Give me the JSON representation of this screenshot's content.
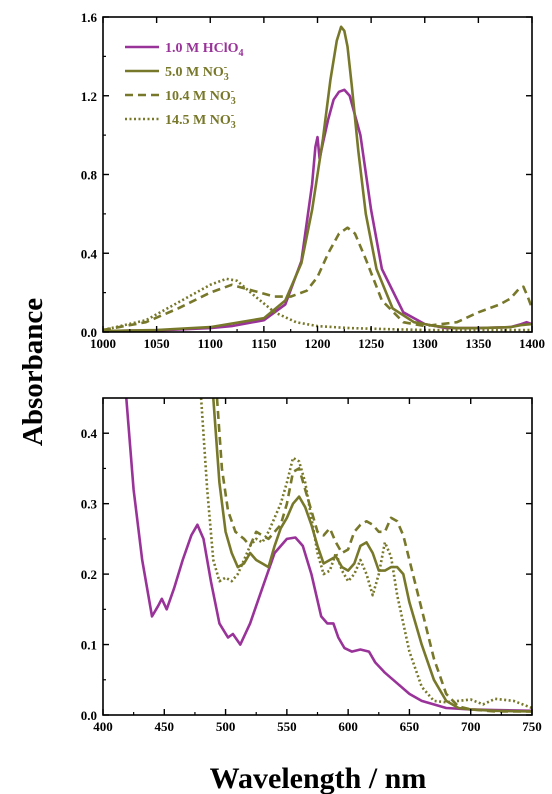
{
  "figure": {
    "ylabel": "Absorbance",
    "xlabel": "Wavelength / nm"
  },
  "colors": {
    "purple": "#993399",
    "olive": "#77782a"
  },
  "chart_data": [
    {
      "type": "line",
      "panel": "top",
      "xlim": [
        1000,
        1400
      ],
      "ylim": [
        0,
        1.6
      ],
      "xticks": [
        "1000",
        "1050",
        "1100",
        "1150",
        "1200",
        "1250",
        "1300",
        "1350",
        "1400"
      ],
      "yticks": [
        "0.0",
        "0.4",
        "0.8",
        "1.2",
        "1.6"
      ],
      "legend_position": "top-left",
      "series": [
        {
          "name": "1.0 M HClO",
          "sub": "4",
          "sup": "",
          "color": "#993399",
          "dash": "solid",
          "x": [
            1000,
            1050,
            1100,
            1120,
            1150,
            1170,
            1185,
            1195,
            1198,
            1200,
            1202,
            1205,
            1210,
            1215,
            1220,
            1225,
            1230,
            1240,
            1250,
            1260,
            1280,
            1300,
            1320,
            1350,
            1380,
            1390,
            1395,
            1400
          ],
          "y": [
            0.005,
            0.008,
            0.02,
            0.03,
            0.06,
            0.14,
            0.36,
            0.75,
            0.94,
            0.99,
            0.88,
            0.96,
            1.08,
            1.18,
            1.22,
            1.23,
            1.2,
            1.0,
            0.62,
            0.32,
            0.1,
            0.04,
            0.02,
            0.02,
            0.025,
            0.04,
            0.05,
            0.04
          ]
        },
        {
          "name": "5.0 M NO",
          "sub": "3",
          "sup": "-",
          "color": "#77782a",
          "dash": "solid",
          "x": [
            1000,
            1050,
            1100,
            1150,
            1170,
            1185,
            1195,
            1205,
            1212,
            1218,
            1222,
            1225,
            1228,
            1232,
            1238,
            1245,
            1255,
            1270,
            1290,
            1310,
            1330,
            1350,
            1380,
            1390,
            1400
          ],
          "y": [
            0.005,
            0.01,
            0.025,
            0.07,
            0.16,
            0.35,
            0.62,
            0.98,
            1.28,
            1.48,
            1.55,
            1.53,
            1.45,
            1.25,
            0.92,
            0.6,
            0.32,
            0.12,
            0.05,
            0.03,
            0.02,
            0.02,
            0.025,
            0.035,
            0.04
          ]
        },
        {
          "name": "10.4 M NO",
          "sub": "3",
          "sup": "-",
          "color": "#77782a",
          "dash": "dashed",
          "x": [
            1000,
            1040,
            1070,
            1100,
            1120,
            1140,
            1160,
            1175,
            1190,
            1200,
            1210,
            1220,
            1228,
            1235,
            1245,
            1260,
            1280,
            1300,
            1330,
            1350,
            1370,
            1380,
            1388,
            1392,
            1396,
            1400
          ],
          "y": [
            0.01,
            0.05,
            0.12,
            0.2,
            0.24,
            0.21,
            0.18,
            0.18,
            0.21,
            0.28,
            0.4,
            0.5,
            0.53,
            0.5,
            0.37,
            0.16,
            0.05,
            0.03,
            0.05,
            0.1,
            0.14,
            0.17,
            0.22,
            0.23,
            0.18,
            0.12
          ]
        },
        {
          "name": "14.5 M NO",
          "sub": "3",
          "sup": "-",
          "color": "#77782a",
          "dash": "dotted",
          "x": [
            1000,
            1040,
            1070,
            1100,
            1115,
            1125,
            1140,
            1160,
            1180,
            1200,
            1230,
            1260,
            1300,
            1340,
            1370,
            1400
          ],
          "y": [
            0.01,
            0.06,
            0.15,
            0.24,
            0.27,
            0.26,
            0.19,
            0.1,
            0.05,
            0.03,
            0.02,
            0.015,
            0.01,
            0.01,
            0.01,
            0.01
          ]
        }
      ]
    },
    {
      "type": "line",
      "panel": "bottom",
      "xlim": [
        400,
        750
      ],
      "ylim": [
        0,
        0.45
      ],
      "xticks": [
        "400",
        "450",
        "500",
        "550",
        "600",
        "650",
        "700",
        "750"
      ],
      "yticks": [
        "0.0",
        "0.1",
        "0.2",
        "0.3",
        "0.4"
      ],
      "series": [
        {
          "name": "1.0 M HClO4",
          "color": "#993399",
          "dash": "solid",
          "x": [
            419,
            425,
            432,
            440,
            445,
            448,
            452,
            458,
            465,
            472,
            477,
            482,
            488,
            495,
            502,
            506,
            512,
            520,
            530,
            540,
            550,
            557,
            563,
            570,
            578,
            583,
            588,
            592,
            597,
            603,
            610,
            617,
            622,
            630,
            640,
            650,
            660,
            680,
            700,
            720,
            750
          ],
          "y": [
            0.45,
            0.32,
            0.22,
            0.14,
            0.155,
            0.165,
            0.15,
            0.18,
            0.22,
            0.255,
            0.27,
            0.25,
            0.19,
            0.13,
            0.11,
            0.115,
            0.1,
            0.13,
            0.18,
            0.23,
            0.25,
            0.252,
            0.24,
            0.2,
            0.14,
            0.13,
            0.13,
            0.11,
            0.095,
            0.09,
            0.093,
            0.09,
            0.075,
            0.06,
            0.045,
            0.03,
            0.02,
            0.01,
            0.008,
            0.007,
            0.006
          ]
        },
        {
          "name": "5.0 M NO3-",
          "color": "#77782a",
          "dash": "solid",
          "x": [
            490,
            495,
            500,
            505,
            510,
            515,
            520,
            525,
            530,
            535,
            540,
            545,
            550,
            555,
            560,
            565,
            570,
            575,
            580,
            585,
            590,
            595,
            600,
            605,
            610,
            615,
            620,
            625,
            630,
            635,
            640,
            645,
            650,
            660,
            670,
            680,
            690,
            700,
            720,
            750
          ],
          "y": [
            0.45,
            0.33,
            0.26,
            0.23,
            0.21,
            0.215,
            0.23,
            0.22,
            0.215,
            0.21,
            0.24,
            0.265,
            0.28,
            0.3,
            0.31,
            0.295,
            0.27,
            0.24,
            0.215,
            0.22,
            0.225,
            0.21,
            0.205,
            0.215,
            0.24,
            0.245,
            0.23,
            0.205,
            0.205,
            0.21,
            0.21,
            0.2,
            0.16,
            0.1,
            0.05,
            0.02,
            0.01,
            0.008,
            0.006,
            0.005
          ]
        },
        {
          "name": "10.4 M NO3-",
          "color": "#77782a",
          "dash": "dashed",
          "x": [
            493,
            497,
            502,
            508,
            515,
            520,
            525,
            530,
            535,
            540,
            545,
            550,
            555,
            560,
            565,
            570,
            575,
            580,
            585,
            590,
            595,
            600,
            605,
            610,
            615,
            620,
            625,
            630,
            635,
            640,
            645,
            650,
            660,
            670,
            680,
            690,
            700,
            720,
            750
          ],
          "y": [
            0.45,
            0.35,
            0.29,
            0.26,
            0.25,
            0.24,
            0.26,
            0.255,
            0.25,
            0.26,
            0.27,
            0.3,
            0.345,
            0.35,
            0.32,
            0.29,
            0.26,
            0.255,
            0.265,
            0.245,
            0.23,
            0.235,
            0.26,
            0.27,
            0.275,
            0.27,
            0.26,
            0.26,
            0.28,
            0.275,
            0.255,
            0.22,
            0.15,
            0.08,
            0.03,
            0.012,
            0.008,
            0.005,
            0.005
          ]
        },
        {
          "name": "14.5 M NO3-",
          "color": "#77782a",
          "dash": "dotted",
          "x": [
            480,
            485,
            490,
            495,
            500,
            505,
            510,
            515,
            520,
            525,
            530,
            535,
            540,
            545,
            550,
            555,
            560,
            565,
            570,
            575,
            580,
            585,
            590,
            595,
            600,
            605,
            610,
            615,
            620,
            625,
            630,
            635,
            640,
            650,
            660,
            670,
            680,
            690,
            700,
            710,
            720,
            735,
            750
          ],
          "y": [
            0.45,
            0.32,
            0.22,
            0.19,
            0.195,
            0.19,
            0.2,
            0.22,
            0.24,
            0.25,
            0.245,
            0.26,
            0.28,
            0.3,
            0.33,
            0.365,
            0.36,
            0.33,
            0.28,
            0.23,
            0.2,
            0.205,
            0.23,
            0.205,
            0.19,
            0.2,
            0.22,
            0.2,
            0.17,
            0.2,
            0.245,
            0.225,
            0.17,
            0.09,
            0.04,
            0.02,
            0.018,
            0.02,
            0.022,
            0.015,
            0.023,
            0.02,
            0.01
          ]
        }
      ]
    }
  ]
}
